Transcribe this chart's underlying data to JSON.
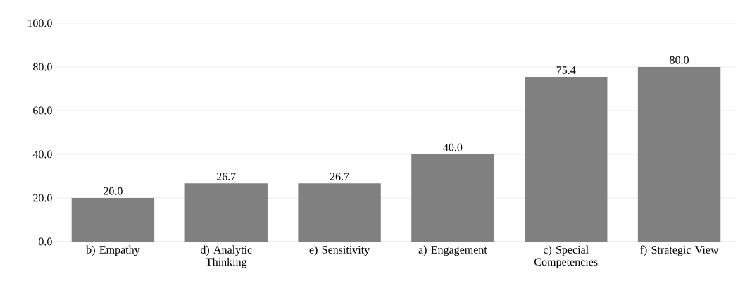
{
  "chart_data": {
    "type": "bar",
    "categories": [
      "b) Empathy",
      "d) Analytic Thinking",
      "e) Sensitivity",
      "a) Engagement",
      "c) Special Competencies",
      "f) Strategic View"
    ],
    "values": [
      20.0,
      26.7,
      26.7,
      40.0,
      75.4,
      80.0
    ],
    "value_labels": [
      "20.0",
      "26.7",
      "26.7",
      "40.0",
      "75.4",
      "80.0"
    ],
    "color": "#808080",
    "ylim": [
      0,
      100
    ],
    "yticks": [
      {
        "value": 0,
        "label": "0.0"
      },
      {
        "value": 20,
        "label": "20.0"
      },
      {
        "value": 40,
        "label": "40.0"
      },
      {
        "value": 60,
        "label": "60.0"
      },
      {
        "value": 80,
        "label": "80.0"
      },
      {
        "value": 100,
        "label": "100.0"
      }
    ],
    "grid": "y"
  }
}
